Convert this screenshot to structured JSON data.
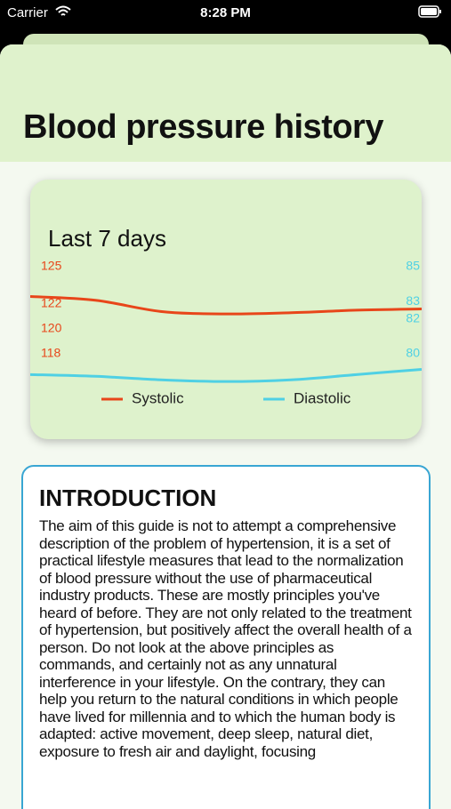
{
  "status_bar": {
    "carrier": "Carrier",
    "time": "8:28 PM"
  },
  "header": {
    "title": "Blood pressure history"
  },
  "chart_data": {
    "type": "line",
    "title": "Last 7 days",
    "categories": [
      null,
      null,
      null,
      null,
      null,
      null,
      null
    ],
    "series": [
      {
        "name": "Systolic",
        "color": "#e8461a",
        "values": [
          122.6,
          122.3,
          121.4,
          121.2,
          121.3,
          121.5,
          121.6
        ]
      },
      {
        "name": "Diastolic",
        "color": "#4fd0e4",
        "axis": "y2",
        "values": [
          78.8,
          78.7,
          78.5,
          78.4,
          78.5,
          78.8,
          79.1
        ]
      }
    ],
    "ylim": [
      115.2,
      125
    ],
    "yticks": [
      125,
      122,
      120,
      118
    ],
    "y2lim": [
      78,
      85
    ],
    "y2ticks": [
      85,
      83,
      82,
      80
    ],
    "grid": false,
    "legend": "bottom"
  },
  "introduction": {
    "heading": "INTRODUCTION",
    "text": "The aim of this guide is not to attempt a comprehensive description of the problem of hypertension, it is a set of practical lifestyle measures that lead to the normalization of blood pressure without the use of pharmaceutical industry products. These are mostly principles you've heard of before. They are not only related to the treatment of hypertension, but positively affect the overall health of a person. Do not look at the above principles as commands, and certainly not as any unnatural interference in your lifestyle. On the contrary, they can help you return to the natural conditions in which people have lived for millennia and to which the human body is adapted: active movement, deep sleep, natural diet, exposure to fresh air and daylight, focusing"
  }
}
